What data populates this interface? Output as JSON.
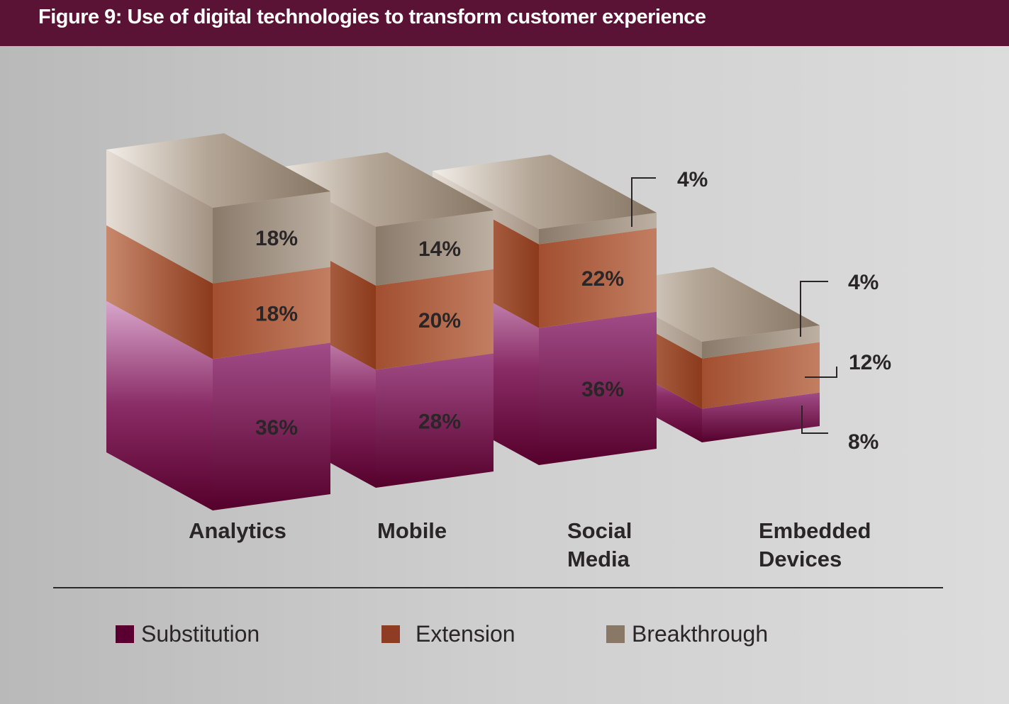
{
  "title": "Figure 9: Use of digital technologies to transform customer experience",
  "chart_data": {
    "type": "bar",
    "stacked": true,
    "three_d": true,
    "categories": [
      "Analytics",
      "Mobile",
      "Social Media",
      "Embedded Devices"
    ],
    "category_lines": [
      [
        "Analytics"
      ],
      [
        "Mobile"
      ],
      [
        "Social",
        "Media"
      ],
      [
        "Embedded",
        "Devices"
      ]
    ],
    "series": [
      {
        "name": "Substitution",
        "values": [
          36,
          28,
          36,
          8
        ],
        "color": "#5a0030"
      },
      {
        "name": "Extension",
        "values": [
          18,
          20,
          22,
          12
        ],
        "color": "#8e3c24"
      },
      {
        "name": "Breakthrough",
        "values": [
          18,
          14,
          4,
          4
        ],
        "color": "#8a7866"
      }
    ],
    "value_suffix": "%",
    "legend_position": "bottom",
    "grid": false
  }
}
